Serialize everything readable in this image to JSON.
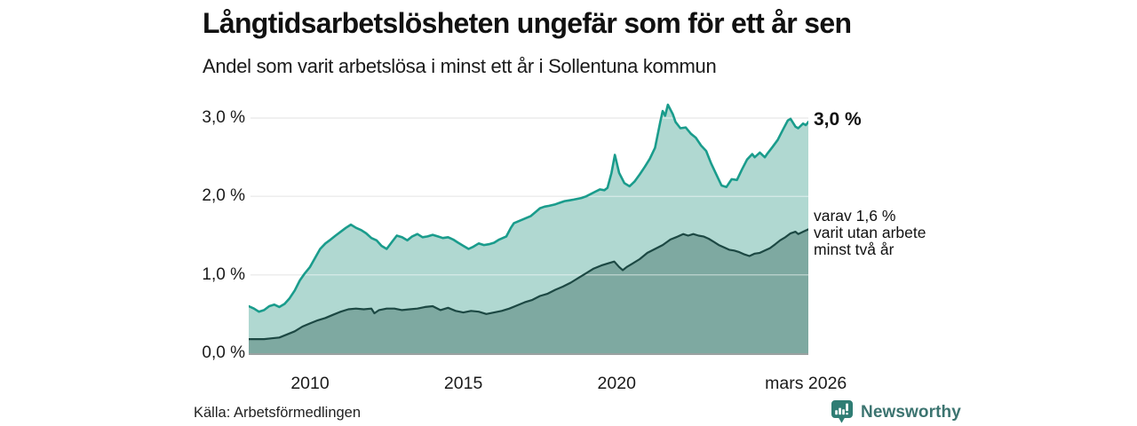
{
  "header": {
    "title": "Långtidsarbetslösheten ungefär som för ett år sen",
    "subtitle": "Andel som varit arbetslösa i minst ett år i Sollentuna kommun"
  },
  "annotations": {
    "total_label": "3,0 %",
    "partial_lines": [
      "varav 1,6 %",
      "varit utan arbete",
      "minst två år"
    ]
  },
  "footer": {
    "source": "Källa: Arbetsförmedlingen",
    "brand": "Newsworthy"
  },
  "colors": {
    "background": "#ffffff",
    "text": "#1a1a1a",
    "grid": "#dedede",
    "grid_over_fill": "rgba(255,255,255,0.45)",
    "baseline": "#9aa1a1",
    "accent_teal": "#1a9c8c",
    "fill_light": "#b0d8d1",
    "line_dark": "#1c4843",
    "fill_dark": "#7ea9a1",
    "brand_teal": "#2f7d74",
    "brand_text_teal": "#3c7470"
  },
  "chart_data": {
    "type": "area",
    "title": "Långtidsarbetslösheten ungefär som för ett år sen",
    "subtitle": "Andel som varit arbetslösa i minst ett år i Sollentuna kommun",
    "unit": "%",
    "grid": "horizontal",
    "legend_position": "end-of-line annotations, right side",
    "x_range": [
      2008,
      2026.25
    ],
    "ylim": [
      0,
      3.3
    ],
    "x_axis": {
      "ticks": [
        {
          "label": "2010",
          "year": 2010
        },
        {
          "label": "2015",
          "year": 2015
        },
        {
          "label": "2020",
          "year": 2020
        },
        {
          "label": "mars 2026",
          "year": 2026.17
        }
      ]
    },
    "y_axis": {
      "ticks": [
        {
          "label": "0,0 %",
          "value": 0
        },
        {
          "label": "1,0 %",
          "value": 1
        },
        {
          "label": "2,0 %",
          "value": 2
        },
        {
          "label": "3,0 %",
          "value": 3
        }
      ]
    },
    "series": [
      {
        "name": "Andel som varit arbetslösa i minst ett år",
        "end_label": "3,0 %",
        "end_value": 3.0,
        "color": "#1a9c8c",
        "fill": "#b0d8d1",
        "stroke_width": 2.6,
        "points": [
          [
            2008.0,
            0.6
          ],
          [
            2008.17,
            0.57
          ],
          [
            2008.33,
            0.53
          ],
          [
            2008.5,
            0.55
          ],
          [
            2008.67,
            0.6
          ],
          [
            2008.83,
            0.62
          ],
          [
            2009.0,
            0.59
          ],
          [
            2009.17,
            0.63
          ],
          [
            2009.33,
            0.7
          ],
          [
            2009.5,
            0.8
          ],
          [
            2009.67,
            0.93
          ],
          [
            2009.83,
            1.02
          ],
          [
            2010.0,
            1.1
          ],
          [
            2010.17,
            1.22
          ],
          [
            2010.33,
            1.33
          ],
          [
            2010.5,
            1.4
          ],
          [
            2010.67,
            1.45
          ],
          [
            2010.83,
            1.5
          ],
          [
            2011.0,
            1.55
          ],
          [
            2011.17,
            1.6
          ],
          [
            2011.33,
            1.64
          ],
          [
            2011.5,
            1.6
          ],
          [
            2011.67,
            1.57
          ],
          [
            2011.83,
            1.53
          ],
          [
            2012.0,
            1.47
          ],
          [
            2012.17,
            1.44
          ],
          [
            2012.33,
            1.37
          ],
          [
            2012.5,
            1.33
          ],
          [
            2012.67,
            1.42
          ],
          [
            2012.83,
            1.5
          ],
          [
            2013.0,
            1.48
          ],
          [
            2013.17,
            1.44
          ],
          [
            2013.33,
            1.49
          ],
          [
            2013.5,
            1.52
          ],
          [
            2013.67,
            1.48
          ],
          [
            2013.83,
            1.49
          ],
          [
            2014.0,
            1.51
          ],
          [
            2014.17,
            1.49
          ],
          [
            2014.33,
            1.47
          ],
          [
            2014.5,
            1.48
          ],
          [
            2014.67,
            1.45
          ],
          [
            2014.83,
            1.41
          ],
          [
            2015.0,
            1.37
          ],
          [
            2015.17,
            1.33
          ],
          [
            2015.33,
            1.36
          ],
          [
            2015.5,
            1.4
          ],
          [
            2015.67,
            1.38
          ],
          [
            2015.83,
            1.39
          ],
          [
            2016.0,
            1.41
          ],
          [
            2016.17,
            1.45
          ],
          [
            2016.4,
            1.49
          ],
          [
            2016.55,
            1.6
          ],
          [
            2016.65,
            1.66
          ],
          [
            2016.9,
            1.7
          ],
          [
            2017.2,
            1.75
          ],
          [
            2017.35,
            1.8
          ],
          [
            2017.5,
            1.85
          ],
          [
            2017.65,
            1.87
          ],
          [
            2017.8,
            1.88
          ],
          [
            2018.0,
            1.9
          ],
          [
            2018.15,
            1.92
          ],
          [
            2018.3,
            1.94
          ],
          [
            2018.45,
            1.95
          ],
          [
            2018.6,
            1.96
          ],
          [
            2018.85,
            1.98
          ],
          [
            2019.0,
            2.0
          ],
          [
            2019.15,
            2.03
          ],
          [
            2019.3,
            2.06
          ],
          [
            2019.45,
            2.09
          ],
          [
            2019.6,
            2.08
          ],
          [
            2019.7,
            2.11
          ],
          [
            2019.83,
            2.3
          ],
          [
            2019.94,
            2.53
          ],
          [
            2020.08,
            2.3
          ],
          [
            2020.25,
            2.17
          ],
          [
            2020.42,
            2.13
          ],
          [
            2020.58,
            2.19
          ],
          [
            2020.75,
            2.28
          ],
          [
            2020.92,
            2.38
          ],
          [
            2021.08,
            2.48
          ],
          [
            2021.25,
            2.62
          ],
          [
            2021.42,
            2.95
          ],
          [
            2021.5,
            3.09
          ],
          [
            2021.58,
            3.03
          ],
          [
            2021.67,
            3.17
          ],
          [
            2021.83,
            3.05
          ],
          [
            2021.92,
            2.95
          ],
          [
            2022.08,
            2.87
          ],
          [
            2022.25,
            2.88
          ],
          [
            2022.42,
            2.8
          ],
          [
            2022.58,
            2.75
          ],
          [
            2022.75,
            2.65
          ],
          [
            2022.92,
            2.58
          ],
          [
            2023.08,
            2.42
          ],
          [
            2023.25,
            2.28
          ],
          [
            2023.42,
            2.14
          ],
          [
            2023.58,
            2.12
          ],
          [
            2023.75,
            2.22
          ],
          [
            2023.92,
            2.21
          ],
          [
            2024.08,
            2.34
          ],
          [
            2024.25,
            2.47
          ],
          [
            2024.42,
            2.54
          ],
          [
            2024.5,
            2.5
          ],
          [
            2024.67,
            2.56
          ],
          [
            2024.83,
            2.5
          ],
          [
            2024.92,
            2.55
          ],
          [
            2025.08,
            2.63
          ],
          [
            2025.25,
            2.72
          ],
          [
            2025.42,
            2.85
          ],
          [
            2025.58,
            2.97
          ],
          [
            2025.67,
            2.99
          ],
          [
            2025.83,
            2.89
          ],
          [
            2025.92,
            2.87
          ],
          [
            2026.08,
            2.93
          ],
          [
            2026.17,
            2.91
          ],
          [
            2026.25,
            2.95
          ]
        ]
      },
      {
        "name": "varav utan arbete minst två år",
        "end_label": "varav 1,6 % varit utan arbete minst två år",
        "end_value": 1.6,
        "color": "#1c4843",
        "fill": "#7ea9a1",
        "stroke_width": 2.2,
        "points": [
          [
            2008.0,
            0.18
          ],
          [
            2008.25,
            0.18
          ],
          [
            2008.5,
            0.18
          ],
          [
            2008.75,
            0.19
          ],
          [
            2009.0,
            0.2
          ],
          [
            2009.25,
            0.24
          ],
          [
            2009.5,
            0.28
          ],
          [
            2009.75,
            0.34
          ],
          [
            2010.0,
            0.38
          ],
          [
            2010.25,
            0.42
          ],
          [
            2010.5,
            0.45
          ],
          [
            2010.75,
            0.49
          ],
          [
            2011.0,
            0.53
          ],
          [
            2011.25,
            0.56
          ],
          [
            2011.5,
            0.57
          ],
          [
            2011.75,
            0.56
          ],
          [
            2012.0,
            0.57
          ],
          [
            2012.1,
            0.51
          ],
          [
            2012.25,
            0.55
          ],
          [
            2012.5,
            0.57
          ],
          [
            2012.75,
            0.57
          ],
          [
            2013.0,
            0.55
          ],
          [
            2013.25,
            0.56
          ],
          [
            2013.5,
            0.57
          ],
          [
            2013.75,
            0.59
          ],
          [
            2014.0,
            0.6
          ],
          [
            2014.25,
            0.55
          ],
          [
            2014.5,
            0.58
          ],
          [
            2014.75,
            0.54
          ],
          [
            2015.0,
            0.52
          ],
          [
            2015.25,
            0.54
          ],
          [
            2015.5,
            0.53
          ],
          [
            2015.75,
            0.5
          ],
          [
            2016.0,
            0.52
          ],
          [
            2016.25,
            0.54
          ],
          [
            2016.5,
            0.57
          ],
          [
            2016.75,
            0.61
          ],
          [
            2017.0,
            0.65
          ],
          [
            2017.25,
            0.68
          ],
          [
            2017.5,
            0.73
          ],
          [
            2017.75,
            0.76
          ],
          [
            2018.0,
            0.81
          ],
          [
            2018.25,
            0.85
          ],
          [
            2018.5,
            0.9
          ],
          [
            2018.75,
            0.96
          ],
          [
            2019.0,
            1.02
          ],
          [
            2019.25,
            1.08
          ],
          [
            2019.5,
            1.12
          ],
          [
            2019.75,
            1.15
          ],
          [
            2019.92,
            1.17
          ],
          [
            2020.08,
            1.1
          ],
          [
            2020.2,
            1.06
          ],
          [
            2020.33,
            1.1
          ],
          [
            2020.5,
            1.14
          ],
          [
            2020.75,
            1.2
          ],
          [
            2021.0,
            1.28
          ],
          [
            2021.25,
            1.33
          ],
          [
            2021.5,
            1.38
          ],
          [
            2021.75,
            1.45
          ],
          [
            2022.0,
            1.49
          ],
          [
            2022.17,
            1.52
          ],
          [
            2022.33,
            1.5
          ],
          [
            2022.5,
            1.52
          ],
          [
            2022.67,
            1.5
          ],
          [
            2022.83,
            1.49
          ],
          [
            2023.0,
            1.46
          ],
          [
            2023.17,
            1.42
          ],
          [
            2023.33,
            1.38
          ],
          [
            2023.5,
            1.35
          ],
          [
            2023.67,
            1.32
          ],
          [
            2023.83,
            1.31
          ],
          [
            2024.0,
            1.29
          ],
          [
            2024.17,
            1.26
          ],
          [
            2024.33,
            1.24
          ],
          [
            2024.5,
            1.27
          ],
          [
            2024.67,
            1.28
          ],
          [
            2024.83,
            1.31
          ],
          [
            2025.0,
            1.34
          ],
          [
            2025.17,
            1.39
          ],
          [
            2025.33,
            1.44
          ],
          [
            2025.5,
            1.48
          ],
          [
            2025.67,
            1.53
          ],
          [
            2025.83,
            1.55
          ],
          [
            2025.92,
            1.52
          ],
          [
            2026.08,
            1.55
          ],
          [
            2026.25,
            1.58
          ]
        ]
      }
    ]
  }
}
